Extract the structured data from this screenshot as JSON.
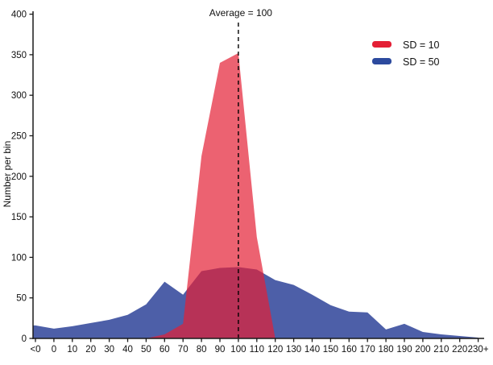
{
  "chart_data": {
    "type": "area",
    "title": "",
    "annotation": "Average = 100",
    "average_category": "100",
    "xlabel": "",
    "ylabel": "Number per bin",
    "ylim": [
      0,
      400
    ],
    "yticks": [
      0,
      50,
      100,
      150,
      200,
      250,
      300,
      350,
      400
    ],
    "grid": false,
    "legend_position": "top-right",
    "categories": [
      "<0",
      "0",
      "10",
      "20",
      "30",
      "40",
      "50",
      "60",
      "70",
      "80",
      "90",
      "100",
      "110",
      "120",
      "130",
      "140",
      "150",
      "160",
      "170",
      "180",
      "190",
      "200",
      "210",
      "220",
      "230+"
    ],
    "series": [
      {
        "name": "SD = 10",
        "color": "#e41f35",
        "legend_color": "#e41f35",
        "fill_opacity": 0.7,
        "values": [
          0,
          0,
          0,
          0,
          0,
          0,
          0,
          5,
          18,
          225,
          340,
          352,
          125,
          0,
          0,
          0,
          0,
          0,
          0,
          0,
          0,
          0,
          0,
          0,
          0
        ]
      },
      {
        "name": "SD = 50",
        "color": "#4d5fa8",
        "legend_color": "#2c4a9e",
        "fill_opacity": 1,
        "values": [
          16,
          12,
          15,
          19,
          23,
          29,
          42,
          70,
          54,
          83,
          87,
          88,
          85,
          72,
          66,
          54,
          41,
          33,
          32,
          11,
          18,
          8,
          5,
          3,
          1
        ]
      }
    ],
    "axis_color": "#1a1a1a",
    "average_line_color": "#000000"
  }
}
